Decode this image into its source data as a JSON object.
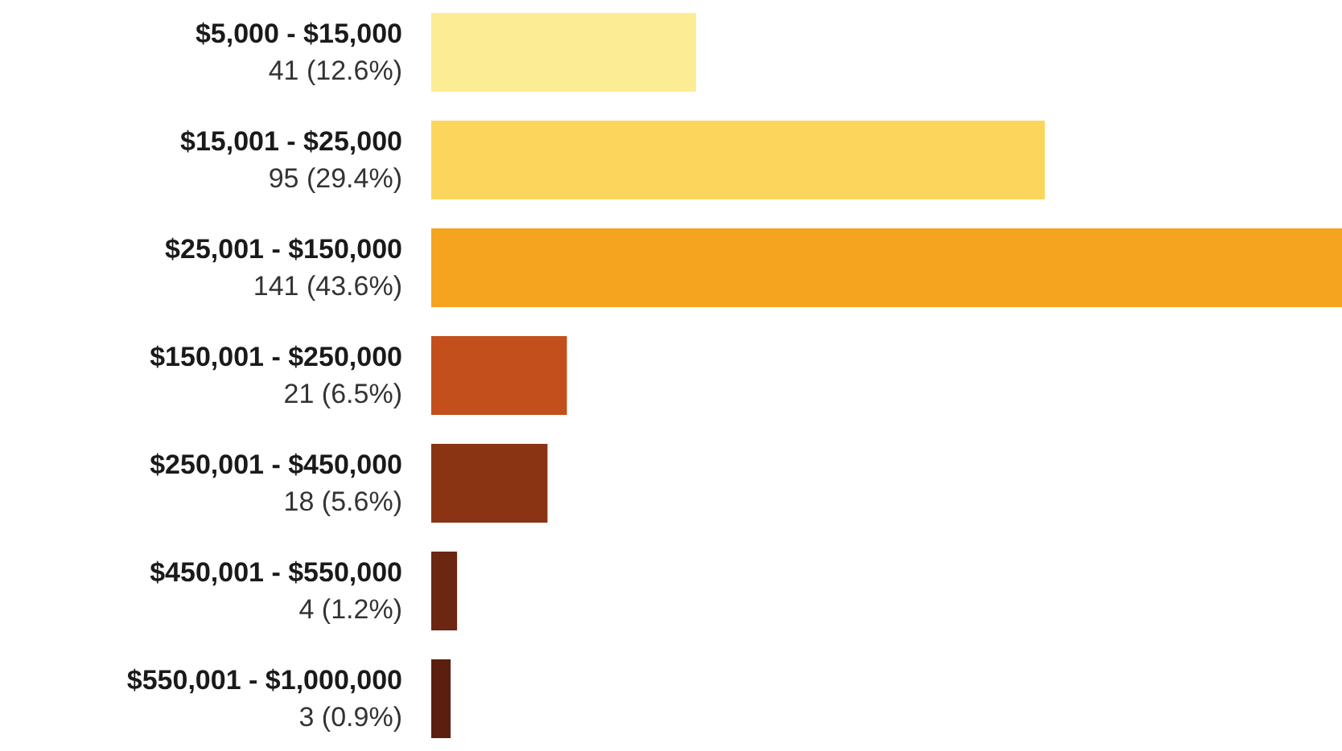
{
  "chart_data": {
    "type": "bar",
    "orientation": "horizontal",
    "categories": [
      "$5,000 - $15,000",
      "$15,001 - $25,000",
      "$25,001 - $150,000",
      "$150,001 - $250,000",
      "$250,001 - $450,000",
      "$450,001 - $550,000",
      "$550,001 - $1,000,000"
    ],
    "values": [
      41,
      95,
      141,
      21,
      18,
      4,
      3
    ],
    "colors": [
      "#fcec94",
      "#fcd65c",
      "#f4a41e",
      "#c24f1c",
      "#8a3414",
      "#6b2712",
      "#5a1f0f"
    ],
    "value_labels": [
      "41 (12.6%)",
      "95 (29.4%)",
      "141 (43.6%)",
      "21 (6.5%)",
      "18 (5.6%)",
      "4 (1.2%)",
      "3 (0.9%)"
    ]
  }
}
